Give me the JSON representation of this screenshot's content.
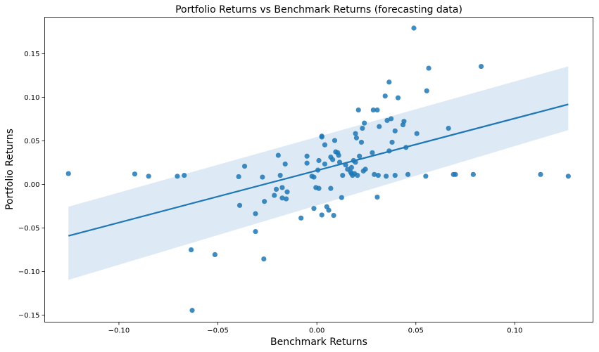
{
  "chart_data": {
    "type": "scatter",
    "title": "Portfolio Returns vs Benchmark Returns (forecasting data)",
    "xlabel": "Benchmark Returns",
    "ylabel": "Portfolio Returns",
    "xlim": [
      -0.1375,
      0.1395
    ],
    "ylim": [
      -0.158,
      0.192
    ],
    "xticks": [
      -0.1,
      -0.05,
      0.0,
      0.05,
      0.1
    ],
    "xtick_labels": [
      "−0.10",
      "−0.05",
      "0.00",
      "0.05",
      "0.10"
    ],
    "yticks": [
      -0.15,
      -0.1,
      -0.05,
      0.0,
      0.05,
      0.1,
      0.15
    ],
    "ytick_labels": [
      "−0.15",
      "−0.10",
      "−0.05",
      "0.00",
      "0.05",
      "0.10",
      "0.15"
    ],
    "grid": false,
    "colors": {
      "points": "#1f77b4",
      "line": "#1f77b4",
      "band": "#c6dbef"
    },
    "regression": {
      "x": [
        -0.1255,
        0.127
      ],
      "y": [
        -0.059,
        0.092
      ],
      "ci_upper": [
        -0.0255,
        0.1355
      ],
      "ci_lower": [
        -0.1095,
        0.0625
      ]
    },
    "points": [
      [
        -0.1255,
        0.0125
      ],
      [
        -0.092,
        0.012
      ],
      [
        -0.085,
        0.0095
      ],
      [
        -0.0705,
        0.0095
      ],
      [
        -0.067,
        0.0105
      ],
      [
        -0.0635,
        -0.075
      ],
      [
        -0.063,
        -0.1445
      ],
      [
        -0.0515,
        -0.0805
      ],
      [
        -0.0395,
        0.009
      ],
      [
        -0.039,
        -0.024
      ],
      [
        -0.0365,
        0.021
      ],
      [
        -0.031,
        -0.0335
      ],
      [
        -0.031,
        -0.054
      ],
      [
        -0.0275,
        0.0085
      ],
      [
        -0.0268,
        -0.0855
      ],
      [
        -0.0265,
        -0.0195
      ],
      [
        -0.0215,
        -0.0125
      ],
      [
        -0.0205,
        -0.0055
      ],
      [
        -0.0195,
        0.0335
      ],
      [
        -0.0185,
        0.0105
      ],
      [
        -0.0175,
        -0.0155
      ],
      [
        -0.0175,
        -0.0035
      ],
      [
        -0.016,
        0.0235
      ],
      [
        -0.0155,
        -0.0165
      ],
      [
        -0.015,
        -0.0085
      ],
      [
        -0.008,
        -0.0385
      ],
      [
        -0.005,
        0.0325
      ],
      [
        -0.005,
        0.0245
      ],
      [
        -0.0025,
        0.0095
      ],
      [
        -0.0015,
        0.0085
      ],
      [
        -0.0015,
        -0.0275
      ],
      [
        -0.0005,
        -0.0035
      ],
      [
        0.0005,
        0.0165
      ],
      [
        0.001,
        0.0275
      ],
      [
        0.001,
        -0.0045
      ],
      [
        0.0025,
        0.0545
      ],
      [
        0.0025,
        0.0555
      ],
      [
        0.0025,
        -0.035
      ],
      [
        0.004,
        0.0455
      ],
      [
        0.004,
        0.0235
      ],
      [
        0.005,
        -0.0255
      ],
      [
        0.006,
        -0.0295
      ],
      [
        0.007,
        0.0315
      ],
      [
        0.007,
        -0.0045
      ],
      [
        0.008,
        0.0285
      ],
      [
        0.0085,
        -0.0355
      ],
      [
        0.009,
        0.0505
      ],
      [
        0.0095,
        0.0375
      ],
      [
        0.0105,
        0.0365
      ],
      [
        0.011,
        0.0335
      ],
      [
        0.0115,
        0.0255
      ],
      [
        0.0125,
        -0.015
      ],
      [
        0.013,
        0.0105
      ],
      [
        0.0145,
        0.0225
      ],
      [
        0.0155,
        0.0175
      ],
      [
        0.017,
        0.0145
      ],
      [
        0.0175,
        0.0125
      ],
      [
        0.0175,
        0.0195
      ],
      [
        0.018,
        0.0105
      ],
      [
        0.0185,
        0.0275
      ],
      [
        0.019,
        0.0125
      ],
      [
        0.0195,
        0.0255
      ],
      [
        0.0195,
        0.0585
      ],
      [
        0.02,
        0.0535
      ],
      [
        0.0205,
        0.0105
      ],
      [
        0.021,
        0.0855
      ],
      [
        0.0215,
        0.0325
      ],
      [
        0.0225,
        0.0485
      ],
      [
        0.023,
        0.0645
      ],
      [
        0.0235,
        0.0155
      ],
      [
        0.024,
        0.0705
      ],
      [
        0.0245,
        0.0175
      ],
      [
        0.028,
        0.0365
      ],
      [
        0.0285,
        0.0855
      ],
      [
        0.029,
        0.0115
      ],
      [
        0.0305,
        0.0855
      ],
      [
        0.0305,
        -0.0145
      ],
      [
        0.031,
        0.0105
      ],
      [
        0.0315,
        0.0665
      ],
      [
        0.0345,
        0.1015
      ],
      [
        0.035,
        0.0095
      ],
      [
        0.0355,
        0.0735
      ],
      [
        0.0365,
        0.0385
      ],
      [
        0.0365,
        0.1175
      ],
      [
        0.0375,
        0.0755
      ],
      [
        0.038,
        0.0485
      ],
      [
        0.0395,
        0.0105
      ],
      [
        0.0395,
        0.0615
      ],
      [
        0.041,
        0.0995
      ],
      [
        0.0435,
        0.0685
      ],
      [
        0.044,
        0.0725
      ],
      [
        0.045,
        0.0425
      ],
      [
        0.046,
        0.0115
      ],
      [
        0.049,
        0.1795
      ],
      [
        0.0505,
        0.0585
      ],
      [
        0.055,
        0.0095
      ],
      [
        0.0555,
        0.1075
      ],
      [
        0.0565,
        0.1335
      ],
      [
        0.0665,
        0.0645
      ],
      [
        0.069,
        0.0115
      ],
      [
        0.07,
        0.0115
      ],
      [
        0.079,
        0.0115
      ],
      [
        0.083,
        0.1355
      ],
      [
        0.113,
        0.0115
      ],
      [
        0.127,
        0.0095
      ]
    ]
  }
}
